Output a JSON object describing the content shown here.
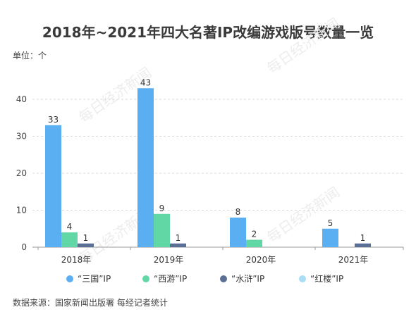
{
  "chart_data": {
    "type": "bar",
    "title": "2018年~2021年四大名著IP改编游戏版号数量一览",
    "unit_label": "单位：个",
    "source": "数据来源：国家新闻出版署 每经记者统计",
    "watermark": "每日经济新闻",
    "categories": [
      "2018年",
      "2019年",
      "2020年",
      "2021年"
    ],
    "series": [
      {
        "name": "“三国”IP",
        "color": "#5aaef2",
        "values": [
          33,
          43,
          8,
          5
        ]
      },
      {
        "name": "“西游”IP",
        "color": "#62d7a6",
        "values": [
          4,
          9,
          2,
          0
        ]
      },
      {
        "name": "“水浒”IP",
        "color": "#5a6e96",
        "values": [
          1,
          1,
          0,
          1
        ]
      },
      {
        "name": "“红楼”IP",
        "color": "#a9dcf5",
        "values": [
          0,
          0,
          0,
          0
        ]
      }
    ],
    "yticks": [
      0,
      10,
      20,
      30,
      40
    ],
    "ylim": [
      0,
      45
    ],
    "grid": true,
    "legend_position": "bottom"
  }
}
